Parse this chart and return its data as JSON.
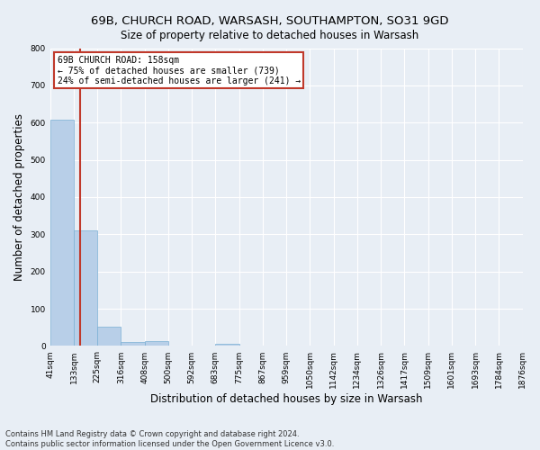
{
  "title_line1": "69B, CHURCH ROAD, WARSASH, SOUTHAMPTON, SO31 9GD",
  "title_line2": "Size of property relative to detached houses in Warsash",
  "xlabel": "Distribution of detached houses by size in Warsash",
  "ylabel": "Number of detached properties",
  "footnote1": "Contains HM Land Registry data © Crown copyright and database right 2024.",
  "footnote2": "Contains public sector information licensed under the Open Government Licence v3.0.",
  "bin_edges": [
    41,
    133,
    225,
    316,
    408,
    500,
    592,
    683,
    775,
    867,
    959,
    1050,
    1142,
    1234,
    1326,
    1417,
    1509,
    1601,
    1693,
    1784,
    1876
  ],
  "bar_heights": [
    608,
    310,
    52,
    10,
    12,
    0,
    0,
    6,
    0,
    0,
    0,
    0,
    0,
    0,
    0,
    0,
    0,
    0,
    0,
    0
  ],
  "bar_color": "#b8cfe8",
  "bar_edge_color": "#7aafd4",
  "property_size": 158,
  "property_label": "69B CHURCH ROAD: 158sqm",
  "annotation_line1": "← 75% of detached houses are smaller (739)",
  "annotation_line2": "24% of semi-detached houses are larger (241) →",
  "vline_color": "#c0392b",
  "annotation_box_color": "#c0392b",
  "ylim": [
    0,
    800
  ],
  "yticks": [
    0,
    100,
    200,
    300,
    400,
    500,
    600,
    700,
    800
  ],
  "bg_color": "#e8eef5",
  "grid_color": "#ffffff",
  "title1_fontsize": 9.5,
  "title2_fontsize": 8.5,
  "tick_label_fontsize": 6.5,
  "axis_label_fontsize": 8.5,
  "footnote_fontsize": 6
}
